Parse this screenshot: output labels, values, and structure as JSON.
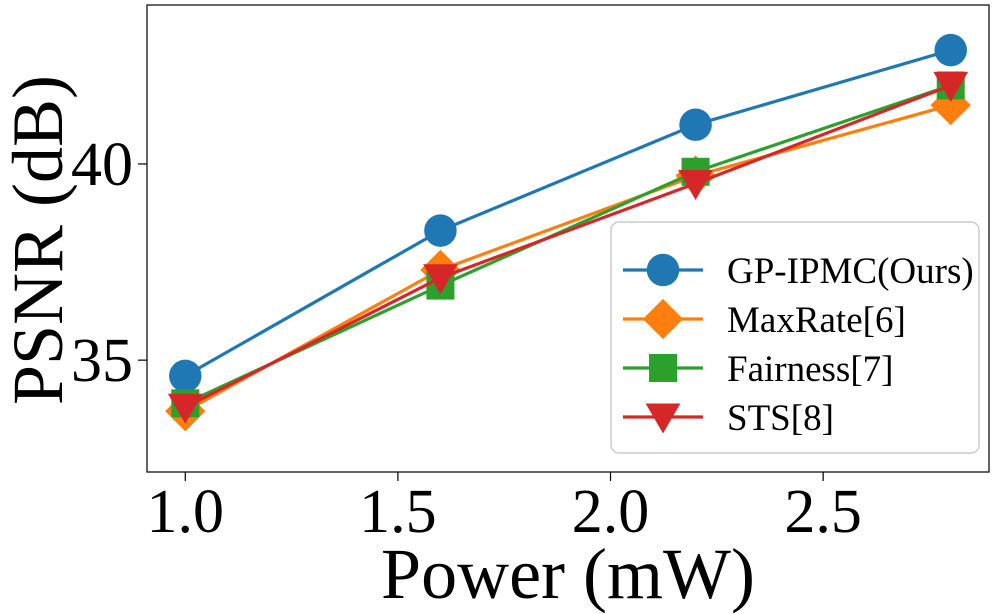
{
  "chart_data": {
    "type": "line",
    "xlabel": "Power (mW)",
    "ylabel": "PSNR (dB)",
    "xlim": [
      0.91,
      2.89
    ],
    "ylim": [
      32.15,
      44.05
    ],
    "xticks": [
      1.0,
      1.5,
      2.0,
      2.5
    ],
    "xtick_labels": [
      "1.0",
      "1.5",
      "2.0",
      "2.5"
    ],
    "yticks": [
      35,
      40
    ],
    "ytick_labels": [
      "35",
      "40"
    ],
    "x": [
      1.0,
      1.6,
      2.2,
      2.8
    ],
    "legend_position": "lower right",
    "series": [
      {
        "name": "GP-IPMC(Ours)",
        "color": "#1f77b4",
        "marker": "circle",
        "values": [
          34.6,
          38.3,
          41.0,
          42.9
        ]
      },
      {
        "name": "MaxRate[6]",
        "color": "#ff7f0e",
        "marker": "diamond",
        "values": [
          33.7,
          37.3,
          39.7,
          41.5
        ]
      },
      {
        "name": "Fairness[7]",
        "color": "#2ca02c",
        "marker": "square",
        "values": [
          33.9,
          36.9,
          39.8,
          42.0
        ]
      },
      {
        "name": "STS[8]",
        "color": "#d62728",
        "marker": "triangle-down",
        "values": [
          33.8,
          37.1,
          39.5,
          42.0
        ]
      }
    ]
  }
}
